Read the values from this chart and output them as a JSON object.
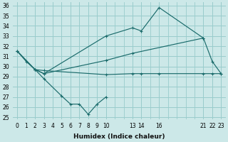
{
  "xlabel": "Humidex (Indice chaleur)",
  "bg_color": "#cce8e8",
  "grid_color": "#99cccc",
  "line_color": "#1a6b6b",
  "xlim": [
    -0.5,
    23.5
  ],
  "ylim": [
    24.8,
    36.3
  ],
  "xticks": [
    0,
    1,
    2,
    3,
    4,
    5,
    6,
    7,
    8,
    9,
    10,
    13,
    14,
    16,
    21,
    22,
    23
  ],
  "yticks": [
    25,
    26,
    27,
    28,
    29,
    30,
    31,
    32,
    33,
    34,
    35,
    36
  ],
  "line1_x": [
    0,
    1,
    2,
    3,
    5,
    6,
    7,
    8,
    9,
    10
  ],
  "line1_y": [
    31.5,
    30.5,
    29.7,
    28.8,
    27.1,
    26.3,
    26.3,
    25.3,
    26.3,
    27.0
  ],
  "line2_x": [
    0,
    2,
    3,
    10,
    13,
    14,
    16,
    21,
    22,
    23
  ],
  "line2_y": [
    31.5,
    29.7,
    29.6,
    29.2,
    29.3,
    29.3,
    29.3,
    29.3,
    29.3,
    29.3
  ],
  "line3_x": [
    2,
    3,
    10,
    13,
    14,
    16,
    21,
    22,
    23
  ],
  "line3_y": [
    29.7,
    29.3,
    33.0,
    33.8,
    33.5,
    35.8,
    32.8,
    30.5,
    29.3
  ],
  "line4_x": [
    0,
    2,
    3,
    10,
    13,
    21
  ],
  "line4_y": [
    31.5,
    29.7,
    29.3,
    30.6,
    31.3,
    32.8
  ],
  "tick_fontsize": 5.5,
  "label_fontsize": 6.5
}
